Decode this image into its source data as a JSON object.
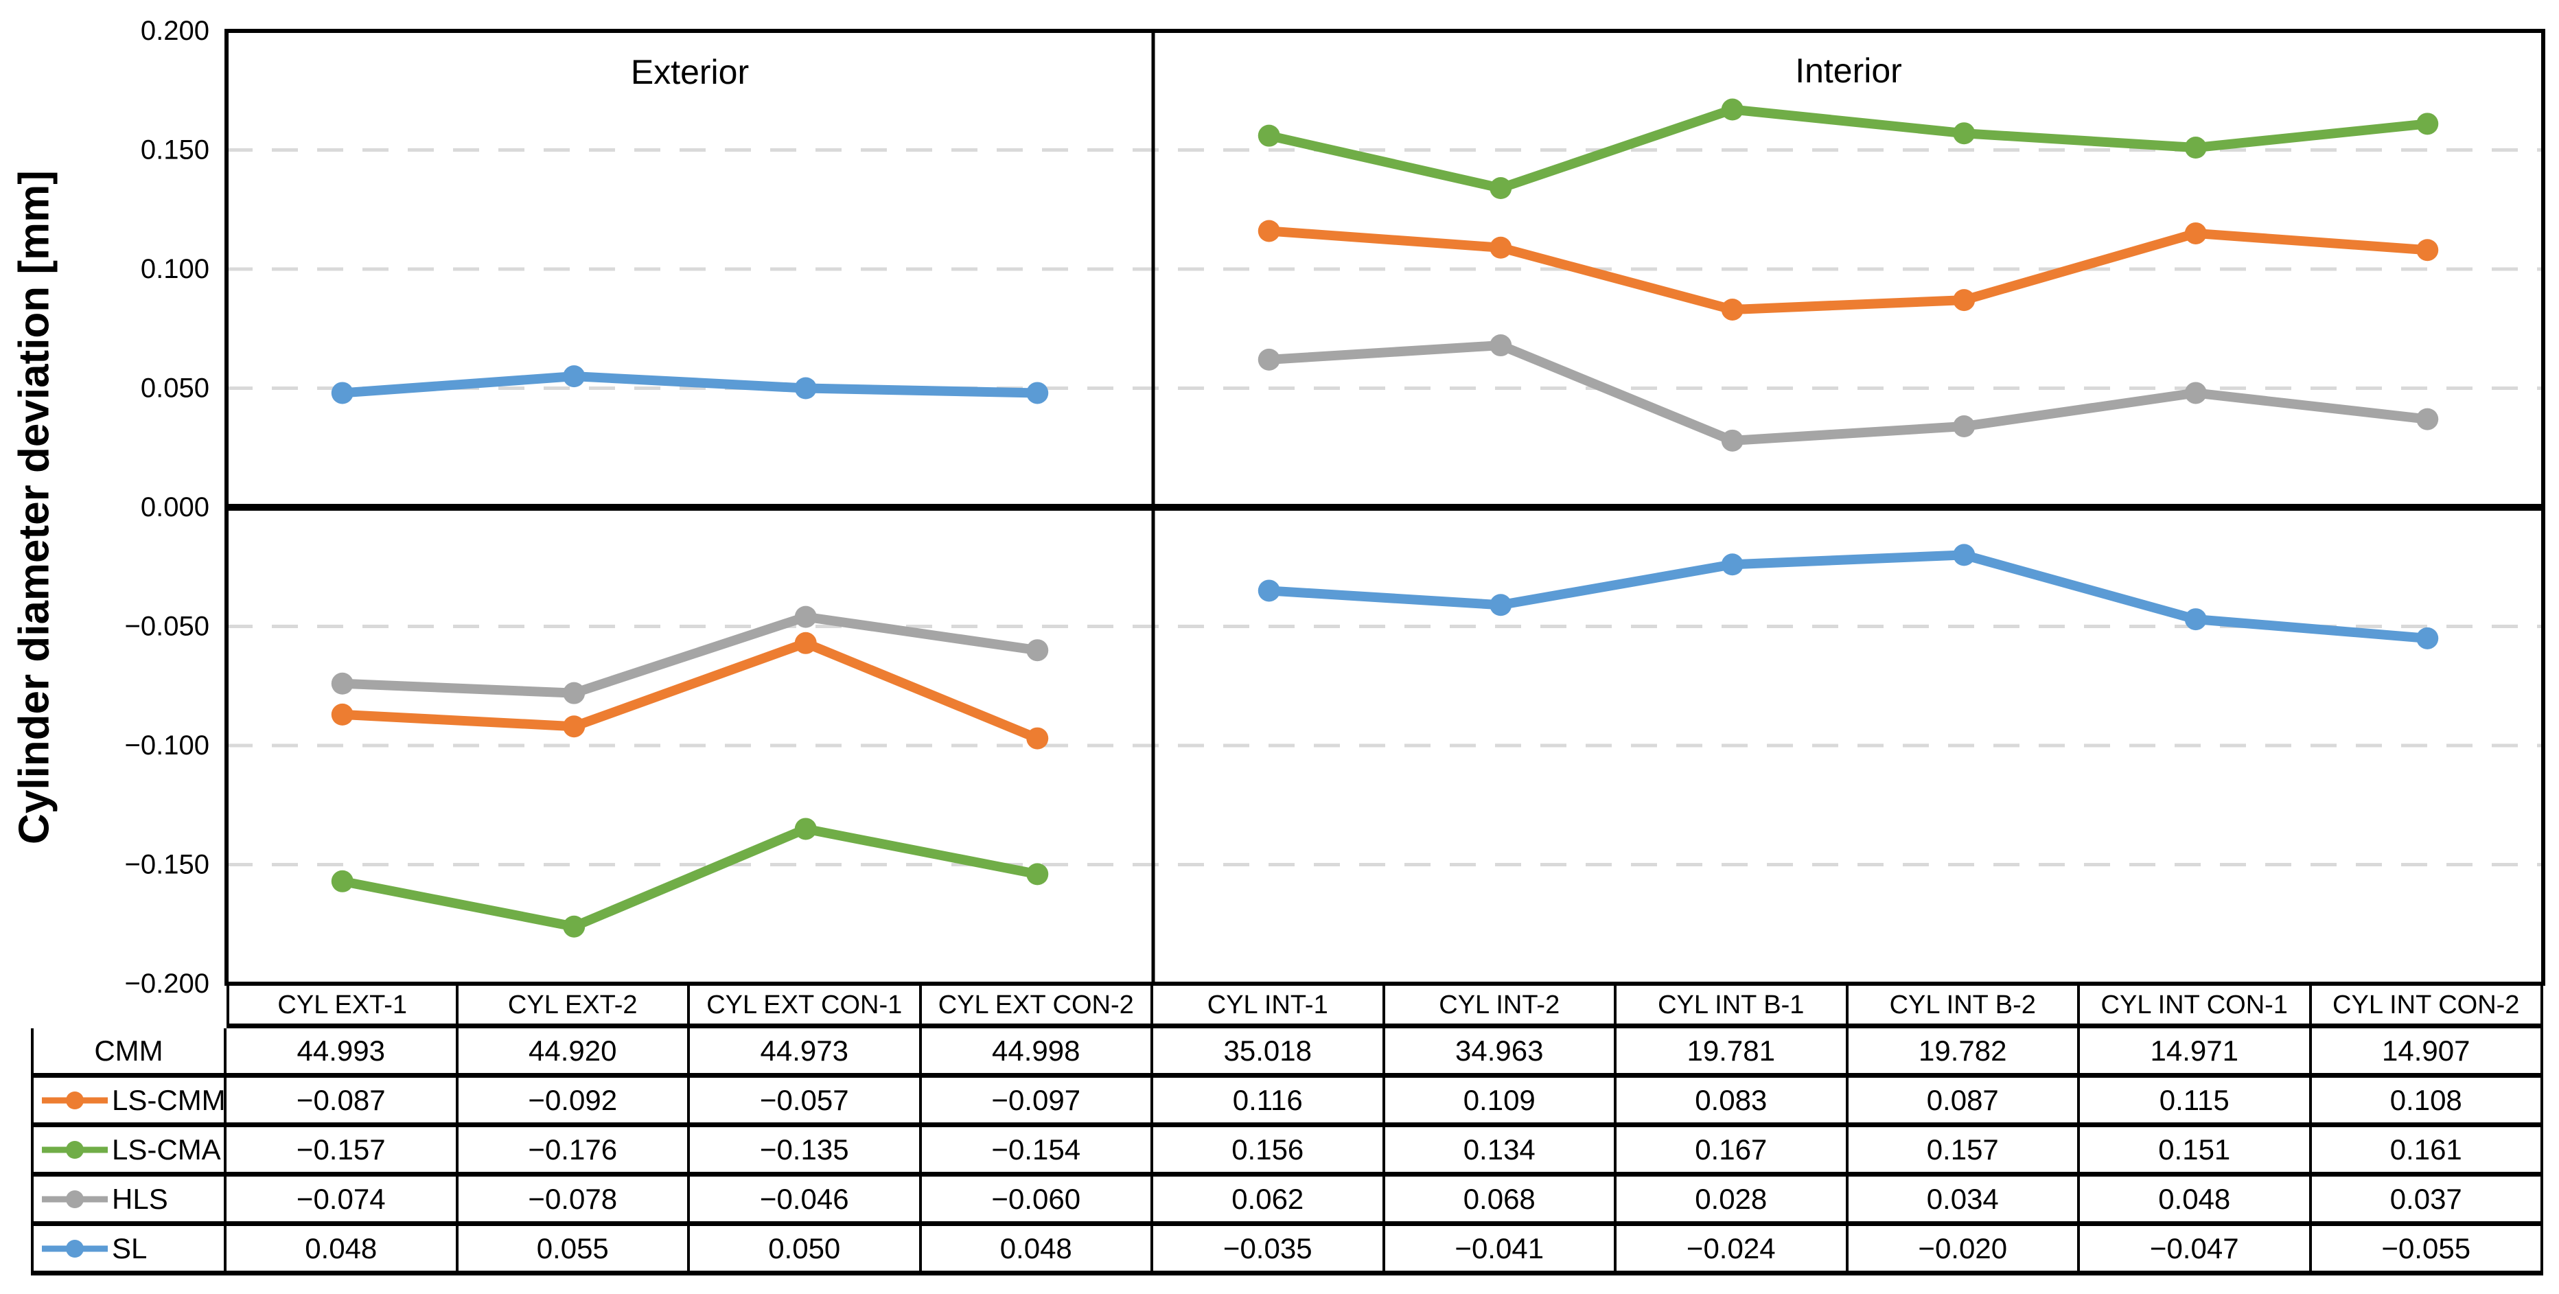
{
  "figure": {
    "ylabel": "Cylinder diameter deviation [mm]",
    "panel_titles": [
      "Exterior",
      "Interior"
    ],
    "yticks": [
      "0.200",
      "0.150",
      "0.100",
      "0.050",
      "0.000",
      "−0.050",
      "−0.100",
      "−0.150",
      "−0.200"
    ]
  },
  "chart_data": {
    "type": "line",
    "title": "",
    "ylabel": "Cylinder diameter deviation [mm]",
    "xlabel": "",
    "ylim": [
      -0.2,
      0.2
    ],
    "ytick_step": 0.05,
    "grid": "horizontal dashed gridlines every 0.050, solid thick line at 0.000",
    "legend_position": "table row headers at left of bottom table",
    "panels": [
      {
        "title": "Exterior",
        "categories": [
          "CYL EXT-1",
          "CYL EXT-2",
          "CYL EXT CON-1",
          "CYL EXT CON-2"
        ]
      },
      {
        "title": "Interior",
        "categories": [
          "CYL INT-1",
          "CYL INT-2",
          "CYL INT B-1",
          "CYL INT B-2",
          "CYL INT CON-1",
          "CYL INT CON-2"
        ]
      }
    ],
    "categories": [
      "CYL EXT-1",
      "CYL EXT-2",
      "CYL EXT CON-1",
      "CYL EXT CON-2",
      "CYL INT-1",
      "CYL INT-2",
      "CYL INT B-1",
      "CYL INT B-2",
      "CYL INT CON-1",
      "CYL INT CON-2"
    ],
    "panel_split_after": 4,
    "series": [
      {
        "name": "LS-CMM",
        "color": "#ED7D31",
        "values": [
          -0.087,
          -0.092,
          -0.057,
          -0.097,
          0.116,
          0.109,
          0.083,
          0.087,
          0.115,
          0.108
        ]
      },
      {
        "name": "LS-CMA",
        "color": "#70AD47",
        "values": [
          -0.157,
          -0.176,
          -0.135,
          -0.154,
          0.156,
          0.134,
          0.167,
          0.157,
          0.151,
          0.161
        ]
      },
      {
        "name": "HLS",
        "color": "#A5A5A5",
        "values": [
          -0.074,
          -0.078,
          -0.046,
          -0.06,
          0.062,
          0.068,
          0.028,
          0.034,
          0.048,
          0.037
        ]
      },
      {
        "name": "SL",
        "color": "#5B9BD5",
        "values": [
          0.048,
          0.055,
          0.05,
          0.048,
          -0.035,
          -0.041,
          -0.024,
          -0.02,
          -0.047,
          -0.055
        ]
      }
    ],
    "reference_row": {
      "name": "CMM",
      "values": [
        44.993,
        44.92,
        44.973,
        44.998,
        35.018,
        34.963,
        19.781,
        19.782,
        14.971,
        14.907
      ]
    }
  },
  "table": {
    "columns": [
      "CYL EXT-1",
      "CYL EXT-2",
      "CYL EXT CON-1",
      "CYL EXT CON-2",
      "CYL INT-1",
      "CYL INT-2",
      "CYL INT B-1",
      "CYL INT B-2",
      "CYL INT CON-1",
      "CYL INT CON-2"
    ],
    "rows": [
      {
        "label": "CMM",
        "marker_color": "",
        "values": [
          "44.993",
          "44.920",
          "44.973",
          "44.998",
          "35.018",
          "34.963",
          "19.781",
          "19.782",
          "14.971",
          "14.907"
        ]
      },
      {
        "label": "LS-CMM",
        "marker_color": "#ED7D31",
        "values": [
          "−0.087",
          "−0.092",
          "−0.057",
          "−0.097",
          "0.116",
          "0.109",
          "0.083",
          "0.087",
          "0.115",
          "0.108"
        ]
      },
      {
        "label": "LS-CMA",
        "marker_color": "#70AD47",
        "values": [
          "−0.157",
          "−0.176",
          "−0.135",
          "−0.154",
          "0.156",
          "0.134",
          "0.167",
          "0.157",
          "0.151",
          "0.161"
        ]
      },
      {
        "label": "HLS",
        "marker_color": "#A5A5A5",
        "values": [
          "−0.074",
          "−0.078",
          "−0.046",
          "−0.060",
          "0.062",
          "0.068",
          "0.028",
          "0.034",
          "0.048",
          "0.037"
        ]
      },
      {
        "label": "SL",
        "marker_color": "#5B9BD5",
        "values": [
          "0.048",
          "0.055",
          "0.050",
          "0.048",
          "−0.035",
          "−0.041",
          "−0.024",
          "−0.020",
          "−0.047",
          "−0.055"
        ]
      }
    ]
  },
  "colors": {
    "orange": "#ED7D31",
    "green": "#70AD47",
    "gray": "#A5A5A5",
    "blue": "#5B9BD5",
    "gridline": "#D9D9D9",
    "frame": "#000000"
  }
}
